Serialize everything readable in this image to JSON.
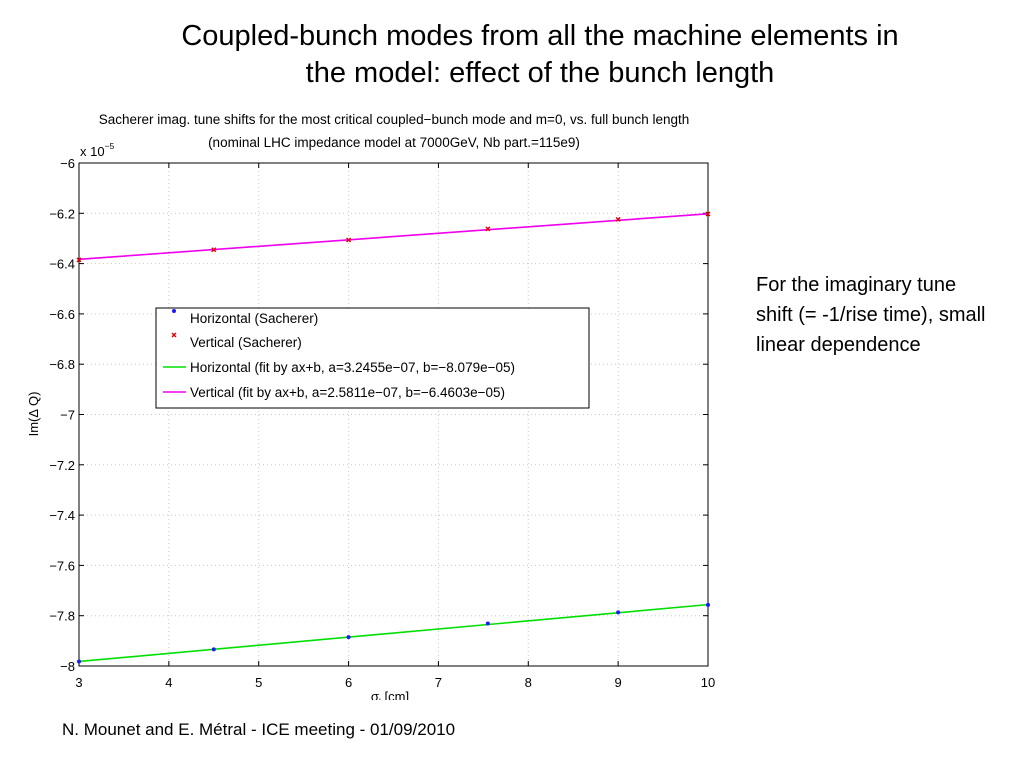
{
  "slide": {
    "title_line1": "Coupled-bunch modes from all the machine elements in",
    "title_line2": "the model: effect of the bunch length",
    "note": "For the imaginary tune shift (= -1/rise time), small linear dependence",
    "footer": "N. Mounet and E. Métral - ICE meeting - 01/09/2010"
  },
  "chart_data": {
    "type": "scatter",
    "title": "Sacherer imag. tune shifts for the most critical coupled−bunch mode and m=0, vs. full bunch length",
    "subtitle": "(nominal LHC impedance model at 7000GeV, Nb part.=115e9)",
    "xlabel_main": "σ",
    "xlabel_sub": "l",
    "xlabel_unit": " [cm]",
    "ylabel": "Im(Δ Q)",
    "y_exponent_base": "x 10",
    "y_exponent_power": "−5",
    "xlim": [
      3,
      10
    ],
    "ylim": [
      -8,
      -6
    ],
    "x_ticks": [
      3,
      4,
      5,
      6,
      7,
      8,
      9,
      10
    ],
    "x_tick_labels": [
      "3",
      "4",
      "5",
      "6",
      "7",
      "8",
      "9",
      "10"
    ],
    "y_ticks": [
      -6,
      -6.2,
      -6.4,
      -6.6,
      -6.8,
      -7,
      -7.2,
      -7.4,
      -7.6,
      -7.8,
      -8
    ],
    "y_tick_labels": [
      "−6",
      "−6.2",
      "−6.4",
      "−6.6",
      "−6.8",
      "−7",
      "−7.2",
      "−7.4",
      "−7.6",
      "−7.8",
      "−8"
    ],
    "grid": true,
    "legend_placement": "center-left",
    "series": [
      {
        "name": "Horizontal (Sacherer)",
        "kind": "points",
        "marker": "dot",
        "color": "#1a1aff",
        "x": [
          3,
          4.5,
          6,
          7.55,
          9,
          10
        ],
        "y": [
          -7.982,
          -7.934,
          -7.885,
          -7.831,
          -7.787,
          -7.757
        ]
      },
      {
        "name": "Vertical (Sacherer)",
        "kind": "points",
        "marker": "x",
        "color": "#e00000",
        "x": [
          3,
          4.5,
          6,
          7.55,
          9,
          10
        ],
        "y": [
          -6.385,
          -6.345,
          -6.306,
          -6.262,
          -6.224,
          -6.203
        ]
      },
      {
        "name": "Horizontal (fit by ax+b, a=3.2455e−07, b=−8.079e−05)",
        "kind": "line",
        "color": "#00e000",
        "x": [
          3,
          10
        ],
        "y": [
          -7.982,
          -7.756
        ]
      },
      {
        "name": "Vertical (fit by ax+b, a=2.5811e−07, b=−6.4603e−05)",
        "kind": "line",
        "color": "#ee00ee",
        "x": [
          3,
          10
        ],
        "y": [
          -6.383,
          -6.202
        ]
      }
    ]
  }
}
